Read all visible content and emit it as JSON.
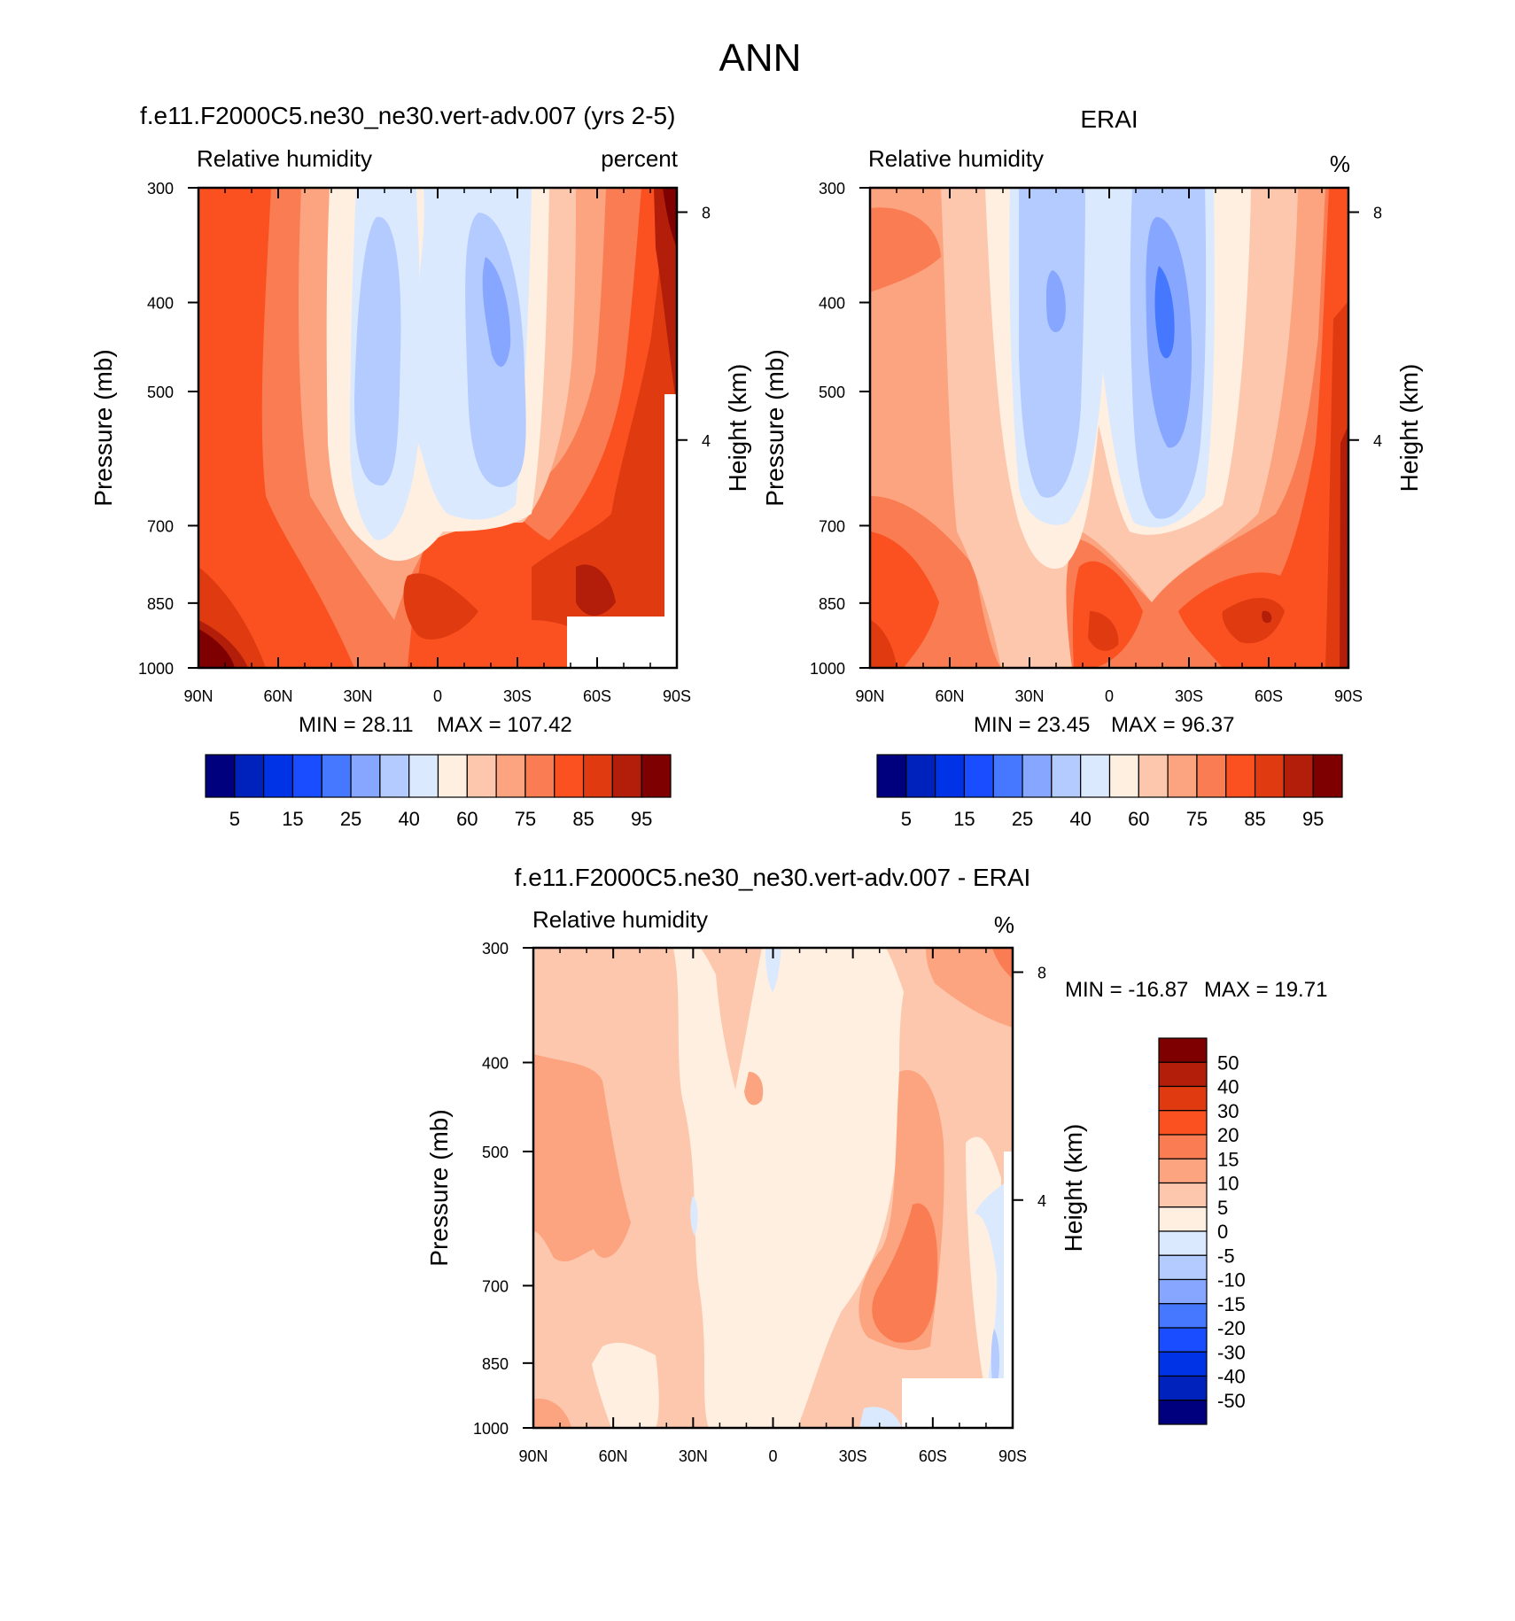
{
  "title": "ANN",
  "colors": {
    "abs_palette": [
      "#00007e",
      "#0022bc",
      "#0033e6",
      "#1a4dff",
      "#4677ff",
      "#86a6ff",
      "#b4cbff",
      "#dbe9ff",
      "#ffefe0",
      "#fcc7ad",
      "#fca37f",
      "#fa7c52",
      "#fb5120",
      "#e03a10",
      "#b21e0a",
      "#7e0000"
    ],
    "diff_palette": [
      "#00007e",
      "#0022bc",
      "#0033e6",
      "#1a4dff",
      "#4677ff",
      "#86a6ff",
      "#b4cbff",
      "#dbe9ff",
      "#ffefe0",
      "#fcc7ad",
      "#fca37f",
      "#fa7c52",
      "#fb5120",
      "#e03a10",
      "#b21e0a",
      "#7e0000"
    ]
  },
  "chart_data": [
    {
      "type": "contour",
      "title": "f.e11.F2000C5.ne30_ne30.vert-adv.007 (yrs 2-5)",
      "left_label": "Relative humidity",
      "right_label": "percent",
      "xlabel": "",
      "ylabel": "Pressure (mb)",
      "y2label": "Height (km)",
      "x_ticks": [
        "90N",
        "60N",
        "30N",
        "0",
        "30S",
        "60S",
        "90S"
      ],
      "x_values": [
        90,
        60,
        30,
        0,
        -30,
        -60,
        -90
      ],
      "y_ticks": [
        "300",
        "400",
        "500",
        "700",
        "850",
        "1000"
      ],
      "y_values": [
        300,
        400,
        500,
        700,
        850,
        1000
      ],
      "y2_ticks": [
        "8",
        "4"
      ],
      "y2_values": [
        8,
        4
      ],
      "ylim": [
        300,
        1000
      ],
      "levels": [
        5,
        10,
        15,
        20,
        25,
        30,
        40,
        50,
        60,
        70,
        75,
        80,
        85,
        90,
        95
      ],
      "colorbar_labels": [
        "5",
        "15",
        "25",
        "40",
        "60",
        "75",
        "85",
        "95"
      ],
      "min_label": "MIN =  28.11",
      "max_label": "MAX = 107.42",
      "min": 28.11,
      "max": 107.42
    },
    {
      "type": "contour",
      "title": "ERAI",
      "left_label": "Relative humidity",
      "right_label": "%",
      "xlabel": "",
      "ylabel": "Pressure (mb)",
      "y2label": "Height (km)",
      "x_ticks": [
        "90N",
        "60N",
        "30N",
        "0",
        "30S",
        "60S",
        "90S"
      ],
      "x_values": [
        90,
        60,
        30,
        0,
        -30,
        -60,
        -90
      ],
      "y_ticks": [
        "300",
        "400",
        "500",
        "700",
        "850",
        "1000"
      ],
      "y_values": [
        300,
        400,
        500,
        700,
        850,
        1000
      ],
      "y2_ticks": [
        "8",
        "4"
      ],
      "y2_values": [
        8,
        4
      ],
      "ylim": [
        300,
        1000
      ],
      "levels": [
        5,
        10,
        15,
        20,
        25,
        30,
        40,
        50,
        60,
        70,
        75,
        80,
        85,
        90,
        95
      ],
      "colorbar_labels": [
        "5",
        "15",
        "25",
        "40",
        "60",
        "75",
        "85",
        "95"
      ],
      "min_label": "MIN =  23.45",
      "max_label": "MAX =  96.37",
      "min": 23.45,
      "max": 96.37
    },
    {
      "type": "contour",
      "title": "f.e11.F2000C5.ne30_ne30.vert-adv.007 - ERAI",
      "left_label": "Relative humidity",
      "right_label": "%",
      "xlabel": "",
      "ylabel": "Pressure (mb)",
      "y2label": "Height (km)",
      "x_ticks": [
        "90N",
        "60N",
        "30N",
        "0",
        "30S",
        "60S",
        "90S"
      ],
      "x_values": [
        90,
        60,
        30,
        0,
        -30,
        -60,
        -90
      ],
      "y_ticks": [
        "300",
        "400",
        "500",
        "700",
        "850",
        "1000"
      ],
      "y_values": [
        300,
        400,
        500,
        700,
        850,
        1000
      ],
      "y2_ticks": [
        "8",
        "4"
      ],
      "y2_values": [
        8,
        4
      ],
      "ylim": [
        300,
        1000
      ],
      "levels": [
        -50,
        -40,
        -30,
        -20,
        -15,
        -10,
        -5,
        0,
        5,
        10,
        15,
        20,
        30,
        40,
        50
      ],
      "colorbar_labels": [
        "50",
        "40",
        "30",
        "20",
        "15",
        "10",
        "5",
        "0",
        "-5",
        "-10",
        "-15",
        "-20",
        "-30",
        "-40",
        "-50"
      ],
      "min_label": "MIN = -16.87",
      "max_label": "MAX =  19.71",
      "min": -16.87,
      "max": 19.71
    }
  ]
}
